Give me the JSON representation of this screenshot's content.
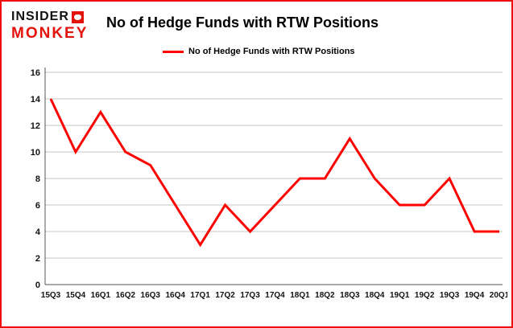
{
  "brand": {
    "insider": "INSIDER",
    "monkey": "MONKEY",
    "accent_red": "#e3120b"
  },
  "header": {
    "title": "No of Hedge Funds with RTW Positions"
  },
  "legend": {
    "label": "No of Hedge Funds with RTW Positions",
    "color": "#fe0000"
  },
  "chart_data": {
    "type": "line",
    "title": "No of Hedge Funds with RTW Positions",
    "categories": [
      "15Q3",
      "15Q4",
      "16Q1",
      "16Q2",
      "16Q3",
      "16Q4",
      "17Q1",
      "17Q2",
      "17Q3",
      "17Q4",
      "18Q1",
      "18Q2",
      "18Q3",
      "18Q4",
      "19Q1",
      "19Q2",
      "19Q3",
      "19Q4",
      "20Q1"
    ],
    "values": [
      14,
      10,
      13,
      10,
      9,
      6,
      3,
      6,
      4,
      6,
      8,
      8,
      11,
      8,
      6,
      6,
      8,
      4,
      4
    ],
    "xlabel": "",
    "ylabel": "",
    "ylim": [
      0,
      16
    ],
    "ytick_step": 2,
    "grid": true,
    "line_color": "#fe0000",
    "legend_position": "top-left"
  }
}
